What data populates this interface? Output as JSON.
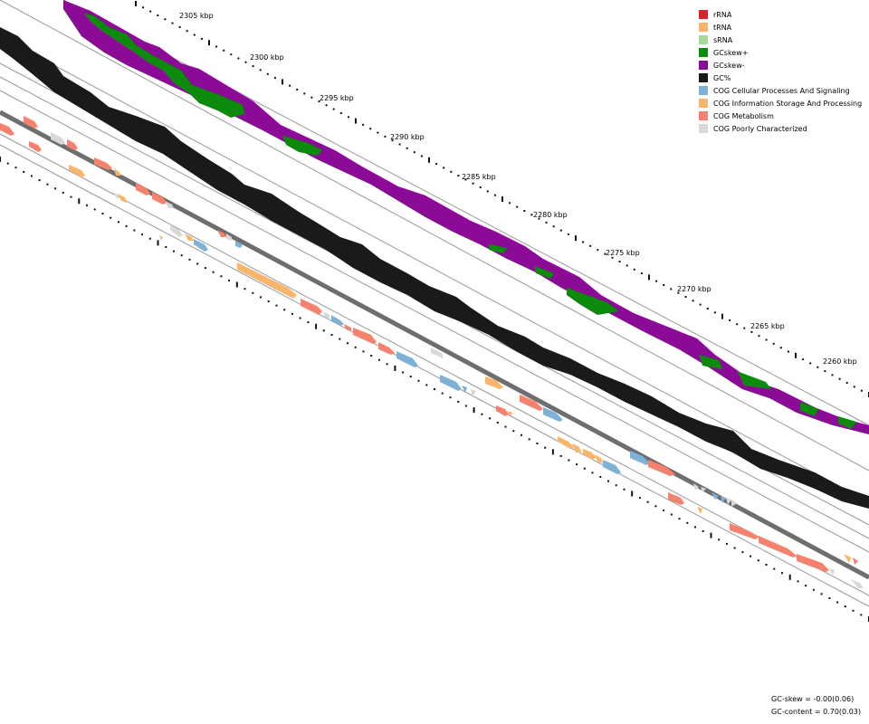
{
  "map": {
    "kbp_labels": [
      "2305 kbp",
      "2300 kbp",
      "2295 kbp",
      "2290 kbp",
      "2285 kbp",
      "2280 kbp",
      "2275 kbp",
      "2270 kbp",
      "2265 kbp",
      "2260 kbp"
    ],
    "legend": [
      {
        "label": "rRNA",
        "color": "#d62728"
      },
      {
        "label": "tRNA",
        "color": "#f9b56b"
      },
      {
        "label": "sRNA",
        "color": "#a4d99a"
      },
      {
        "label": "GCskew+",
        "color": "#0b8a0b"
      },
      {
        "label": "GCskew-",
        "color": "#8b0a96"
      },
      {
        "label": "GC%",
        "color": "#1a1a1a"
      },
      {
        "label": "COG Cellular Processes And Signaling",
        "color": "#7fb0d6"
      },
      {
        "label": "COG Information Storage And Processing",
        "color": "#f9b56b"
      },
      {
        "label": "COG Metabolism",
        "color": "#f4826f"
      },
      {
        "label": "COG Poorly Characterized",
        "color": "#d8d8d8"
      }
    ],
    "stats": {
      "gc_skew": "GC-skew = -0.00(0.06)",
      "gc_content": "GC-content = 0.70(0.03)"
    }
  }
}
